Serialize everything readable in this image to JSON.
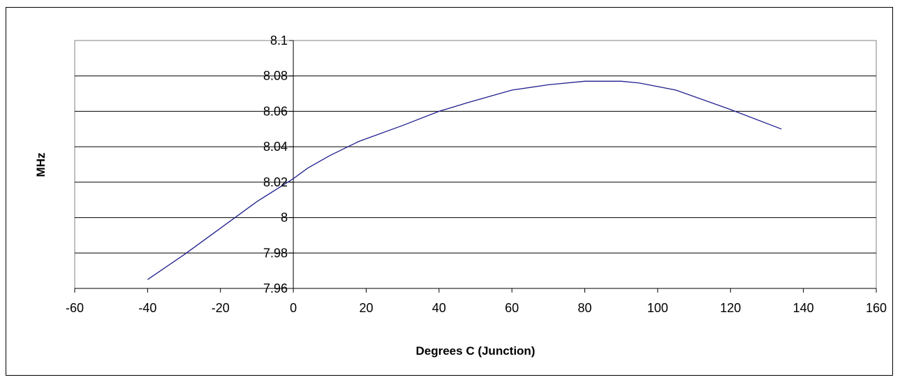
{
  "chart_data": {
    "type": "line",
    "title": "",
    "xlabel": "Degrees C (Junction)",
    "ylabel": "MHz",
    "xlim": [
      -60,
      160
    ],
    "ylim": [
      7.96,
      8.1
    ],
    "xticks": [
      -60,
      -40,
      -20,
      0,
      20,
      40,
      60,
      80,
      100,
      120,
      140,
      160
    ],
    "xtick_labels": [
      "-60",
      "-40",
      "-20",
      "0",
      "20",
      "40",
      "60",
      "80",
      "100",
      "120",
      "140",
      "160"
    ],
    "yticks": [
      7.96,
      7.98,
      8.0,
      8.02,
      8.04,
      8.06,
      8.08,
      8.1
    ],
    "ytick_labels": [
      "7.96",
      "7.98",
      "8",
      "8.02",
      "8.04",
      "8.06",
      "8.08",
      "8.1"
    ],
    "grid": "horizontal",
    "legend": "none",
    "line_color": "#1f1f8f",
    "series": [
      {
        "x": [
          -40,
          -30,
          -20,
          -10,
          0,
          4,
          10,
          18,
          30,
          40,
          48,
          60,
          70,
          80,
          90,
          95,
          105,
          120,
          134
        ],
        "y": [
          7.965,
          7.979,
          7.994,
          8.009,
          8.022,
          8.028,
          8.035,
          8.043,
          8.052,
          8.06,
          8.065,
          8.072,
          8.075,
          8.077,
          8.077,
          8.076,
          8.072,
          8.061,
          8.05
        ]
      }
    ]
  }
}
